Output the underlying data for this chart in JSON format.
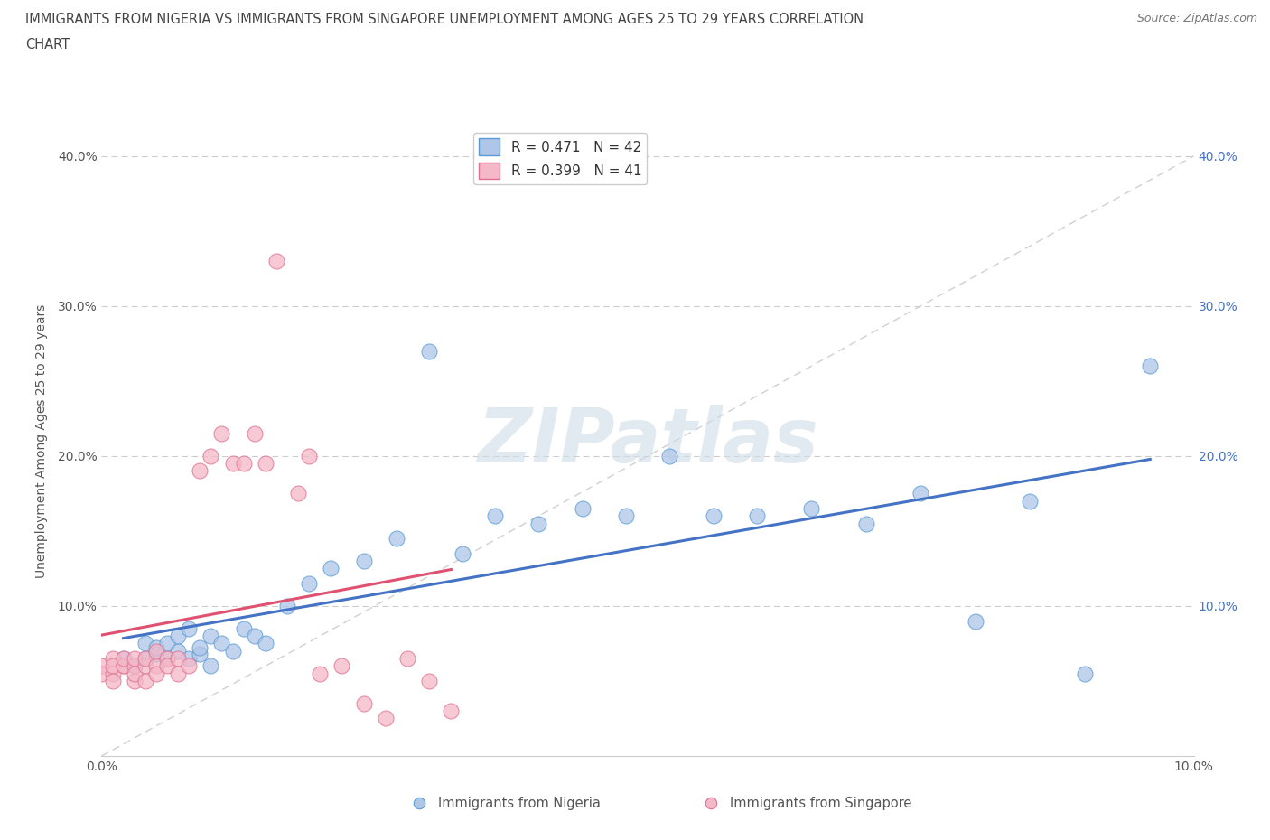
{
  "title_line1": "IMMIGRANTS FROM NIGERIA VS IMMIGRANTS FROM SINGAPORE UNEMPLOYMENT AMONG AGES 25 TO 29 YEARS CORRELATION",
  "title_line2": "CHART",
  "source": "Source: ZipAtlas.com",
  "ylabel": "Unemployment Among Ages 25 to 29 years",
  "xlim": [
    0.0,
    0.1
  ],
  "ylim": [
    0.0,
    0.42
  ],
  "nigeria_R": 0.471,
  "nigeria_N": 42,
  "singapore_R": 0.399,
  "singapore_N": 41,
  "nigeria_color": "#aec6e8",
  "nigeria_edge_color": "#5b9bd5",
  "nigeria_line_color": "#4472c4",
  "singapore_color": "#f4b8c8",
  "singapore_edge_color": "#e07090",
  "singapore_line_color": "#e05070",
  "diagonal_color": "#d0d0d0",
  "watermark_color": "#d0dde8",
  "nigeria_x": [
    0.002,
    0.003,
    0.004,
    0.004,
    0.005,
    0.005,
    0.006,
    0.006,
    0.007,
    0.007,
    0.008,
    0.008,
    0.009,
    0.009,
    0.01,
    0.01,
    0.011,
    0.012,
    0.013,
    0.014,
    0.015,
    0.017,
    0.019,
    0.021,
    0.024,
    0.027,
    0.03,
    0.033,
    0.036,
    0.04,
    0.044,
    0.048,
    0.052,
    0.056,
    0.06,
    0.065,
    0.07,
    0.075,
    0.08,
    0.085,
    0.09,
    0.096
  ],
  "nigeria_y": [
    0.065,
    0.06,
    0.065,
    0.075,
    0.068,
    0.072,
    0.065,
    0.075,
    0.07,
    0.08,
    0.065,
    0.085,
    0.068,
    0.072,
    0.06,
    0.08,
    0.075,
    0.07,
    0.085,
    0.08,
    0.075,
    0.1,
    0.115,
    0.125,
    0.13,
    0.145,
    0.27,
    0.135,
    0.16,
    0.155,
    0.165,
    0.16,
    0.2,
    0.16,
    0.16,
    0.165,
    0.155,
    0.175,
    0.09,
    0.17,
    0.055,
    0.26
  ],
  "singapore_x": [
    0.0,
    0.0,
    0.001,
    0.001,
    0.001,
    0.001,
    0.002,
    0.002,
    0.002,
    0.003,
    0.003,
    0.003,
    0.003,
    0.004,
    0.004,
    0.004,
    0.005,
    0.005,
    0.005,
    0.006,
    0.006,
    0.007,
    0.007,
    0.008,
    0.009,
    0.01,
    0.011,
    0.012,
    0.013,
    0.014,
    0.015,
    0.016,
    0.018,
    0.019,
    0.02,
    0.022,
    0.024,
    0.026,
    0.028,
    0.03,
    0.032
  ],
  "singapore_y": [
    0.06,
    0.055,
    0.065,
    0.055,
    0.06,
    0.05,
    0.06,
    0.06,
    0.065,
    0.06,
    0.065,
    0.05,
    0.055,
    0.06,
    0.065,
    0.05,
    0.06,
    0.07,
    0.055,
    0.065,
    0.06,
    0.065,
    0.055,
    0.06,
    0.19,
    0.2,
    0.215,
    0.195,
    0.195,
    0.215,
    0.195,
    0.33,
    0.175,
    0.2,
    0.055,
    0.06,
    0.035,
    0.025,
    0.065,
    0.05,
    0.03
  ]
}
